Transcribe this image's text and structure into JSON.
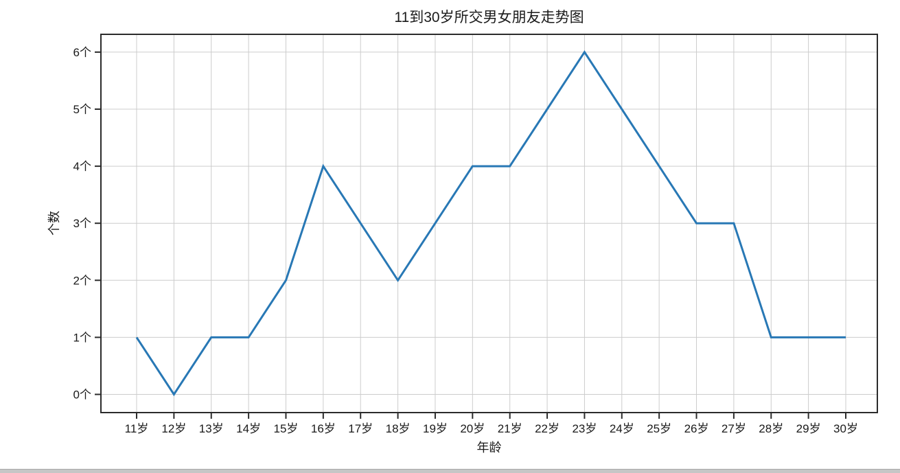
{
  "chart_data": {
    "type": "line",
    "title": "11到30岁所交男女朋友走势图",
    "xlabel": "年龄",
    "ylabel": "个数",
    "categories": [
      "11岁",
      "12岁",
      "13岁",
      "14岁",
      "15岁",
      "16岁",
      "17岁",
      "18岁",
      "19岁",
      "20岁",
      "21岁",
      "22岁",
      "23岁",
      "24岁",
      "25岁",
      "26岁",
      "27岁",
      "28岁",
      "29岁",
      "30岁"
    ],
    "values": [
      1,
      0,
      1,
      1,
      2,
      4,
      3,
      2,
      3,
      4,
      4,
      5,
      6,
      5,
      4,
      3,
      3,
      1,
      1,
      1
    ],
    "y_tick_labels": [
      "0个",
      "1个",
      "2个",
      "3个",
      "4个",
      "5个",
      "6个"
    ],
    "y_tick_values": [
      0,
      1,
      2,
      3,
      4,
      5,
      6
    ],
    "ylim": [
      -0.3,
      6.3
    ],
    "grid": true,
    "legend": "none",
    "colors": {
      "line": "#2878b5",
      "grid": "#cccccc",
      "spine": "#2b2b2b",
      "text": "#1a1a1a",
      "background": "#ffffff",
      "bottom_bar": "#c6c6c6"
    }
  }
}
